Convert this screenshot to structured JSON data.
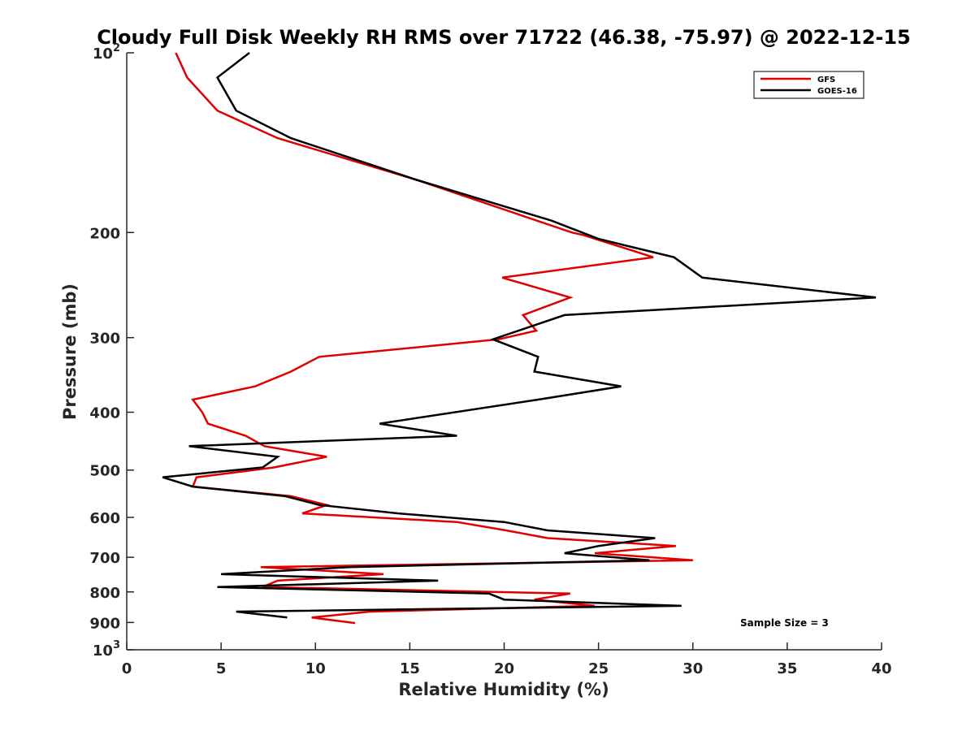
{
  "chart_data": {
    "type": "line",
    "title": "Cloudy Full Disk Weekly RH RMS over 71722 (46.38, -75.97) @ 2022-12-15",
    "xlabel": "Relative Humidity (%)",
    "ylabel": "Pressure (mb)",
    "xlim": [
      0,
      40
    ],
    "ylim": [
      100,
      1000
    ],
    "yscale": "log",
    "yreversed": true,
    "x_ticks": [
      "0",
      "5",
      "10",
      "15",
      "20",
      "25",
      "30",
      "35",
      "40"
    ],
    "y_ticks": [
      {
        "value": 100,
        "base": "10",
        "exp": "2"
      },
      {
        "value": 200,
        "label": "200"
      },
      {
        "value": 300,
        "label": "300"
      },
      {
        "value": 400,
        "label": "400"
      },
      {
        "value": 500,
        "label": "500"
      },
      {
        "value": 600,
        "label": "600"
      },
      {
        "value": 700,
        "label": "700"
      },
      {
        "value": 800,
        "label": "800"
      },
      {
        "value": 900,
        "label": "900"
      },
      {
        "value": 1000,
        "base": "10",
        "exp": "3"
      }
    ],
    "legend": {
      "position": "top-right"
    },
    "annotation": "Sample Size = 3",
    "series": [
      {
        "name": "GFS",
        "color": "#e00000",
        "points": [
          [
            2.6,
            100
          ],
          [
            3.2,
            110
          ],
          [
            4.8,
            125
          ],
          [
            8.0,
            139
          ],
          [
            15.3,
            163
          ],
          [
            23.6,
            200
          ],
          [
            24.2,
            202
          ],
          [
            27.9,
            220
          ],
          [
            19.9,
            238
          ],
          [
            23.5,
            257
          ],
          [
            21.0,
            275
          ],
          [
            21.7,
            292
          ],
          [
            19.7,
            302
          ],
          [
            10.2,
            323
          ],
          [
            8.7,
            342
          ],
          [
            6.8,
            362
          ],
          [
            3.5,
            381
          ],
          [
            4.0,
            400
          ],
          [
            4.3,
            418
          ],
          [
            6.3,
            438
          ],
          [
            7.3,
            456
          ],
          [
            10.6,
            475
          ],
          [
            7.8,
            495
          ],
          [
            3.7,
            514
          ],
          [
            3.5,
            533
          ],
          [
            8.7,
            553
          ],
          [
            10.6,
            572
          ],
          [
            9.3,
            591
          ],
          [
            17.5,
            611
          ],
          [
            20.1,
            631
          ],
          [
            22.3,
            650
          ],
          [
            29.1,
            670
          ],
          [
            24.8,
            689
          ],
          [
            30.0,
            708
          ],
          [
            7.1,
            727
          ],
          [
            13.6,
            747
          ],
          [
            8.0,
            766
          ],
          [
            7.2,
            785
          ],
          [
            23.5,
            805
          ],
          [
            21.6,
            824
          ],
          [
            24.8,
            844
          ],
          [
            12.9,
            863
          ],
          [
            9.8,
            883
          ],
          [
            12.1,
            902
          ]
        ]
      },
      {
        "name": "GOES-16",
        "color": "#000000",
        "points": [
          [
            6.5,
            100
          ],
          [
            4.8,
            110
          ],
          [
            5.8,
            125
          ],
          [
            8.7,
            139
          ],
          [
            15.3,
            163
          ],
          [
            22.5,
            191
          ],
          [
            25.0,
            205
          ],
          [
            29.0,
            220
          ],
          [
            30.5,
            238
          ],
          [
            39.7,
            257
          ],
          [
            23.2,
            275
          ],
          [
            19.4,
            302
          ],
          [
            21.8,
            323
          ],
          [
            21.6,
            342
          ],
          [
            26.2,
            362
          ],
          [
            21.8,
            381
          ],
          [
            13.4,
            418
          ],
          [
            17.5,
            438
          ],
          [
            3.3,
            456
          ],
          [
            8.0,
            475
          ],
          [
            7.2,
            495
          ],
          [
            1.9,
            514
          ],
          [
            3.5,
            533
          ],
          [
            8.4,
            553
          ],
          [
            10.2,
            572
          ],
          [
            14.4,
            591
          ],
          [
            20.0,
            611
          ],
          [
            22.3,
            631
          ],
          [
            28.0,
            650
          ],
          [
            25.0,
            670
          ],
          [
            23.2,
            689
          ],
          [
            27.7,
            708
          ],
          [
            11.8,
            727
          ],
          [
            5.0,
            747
          ],
          [
            16.5,
            766
          ],
          [
            4.8,
            785
          ],
          [
            19.2,
            805
          ],
          [
            20.0,
            824
          ],
          [
            29.4,
            844
          ],
          [
            5.8,
            863
          ],
          [
            8.5,
            883
          ]
        ]
      }
    ]
  }
}
